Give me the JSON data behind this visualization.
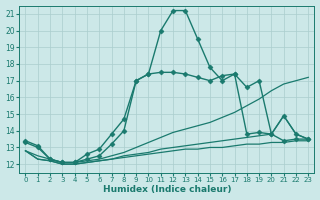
{
  "title": "",
  "xlabel": "Humidex (Indice chaleur)",
  "ylabel": "",
  "bg_color": "#cce8e8",
  "grid_color": "#aacece",
  "line_color": "#1a7a6e",
  "xlim": [
    -0.5,
    23.5
  ],
  "ylim": [
    11.5,
    21.5
  ],
  "xticks": [
    0,
    1,
    2,
    3,
    4,
    5,
    6,
    7,
    8,
    9,
    10,
    11,
    12,
    13,
    14,
    15,
    16,
    17,
    18,
    19,
    20,
    21,
    22,
    23
  ],
  "yticks": [
    12,
    13,
    14,
    15,
    16,
    17,
    18,
    19,
    20,
    21
  ],
  "series": [
    {
      "x": [
        0,
        1,
        2,
        3,
        4,
        5,
        6,
        7,
        8,
        9,
        10,
        11,
        12,
        13,
        14,
        15,
        16,
        17,
        18,
        19,
        20,
        21,
        22,
        23
      ],
      "y": [
        13.4,
        13.1,
        12.3,
        12.1,
        12.1,
        12.6,
        12.9,
        13.8,
        14.7,
        17.0,
        17.4,
        20.0,
        21.2,
        21.2,
        19.5,
        17.8,
        17.0,
        17.4,
        16.6,
        17.0,
        13.8,
        14.9,
        13.8,
        13.5
      ],
      "marker": "D",
      "markersize": 2.5,
      "linewidth": 1.0
    },
    {
      "x": [
        0,
        1,
        2,
        3,
        4,
        5,
        6,
        7,
        8,
        9,
        10,
        11,
        12,
        13,
        14,
        15,
        16,
        17,
        18,
        19,
        20,
        21,
        22,
        23
      ],
      "y": [
        13.3,
        13.0,
        12.3,
        12.1,
        12.1,
        12.3,
        12.5,
        13.2,
        14.0,
        17.0,
        17.4,
        17.5,
        17.5,
        17.4,
        17.2,
        17.0,
        17.3,
        17.4,
        13.8,
        13.9,
        13.8,
        13.4,
        13.5,
        13.5
      ],
      "marker": "D",
      "markersize": 2.5,
      "linewidth": 1.0
    },
    {
      "x": [
        0,
        1,
        2,
        3,
        4,
        5,
        6,
        7,
        8,
        9,
        10,
        11,
        12,
        13,
        14,
        15,
        16,
        17,
        18,
        19,
        20,
        21,
        22,
        23
      ],
      "y": [
        12.8,
        12.5,
        12.3,
        12.1,
        12.1,
        12.2,
        12.3,
        12.5,
        12.7,
        13.0,
        13.3,
        13.6,
        13.9,
        14.1,
        14.3,
        14.5,
        14.8,
        15.1,
        15.5,
        15.9,
        16.4,
        16.8,
        17.0,
        17.2
      ],
      "marker": null,
      "markersize": 0,
      "linewidth": 0.9
    },
    {
      "x": [
        0,
        1,
        2,
        3,
        4,
        5,
        6,
        7,
        8,
        9,
        10,
        11,
        12,
        13,
        14,
        15,
        16,
        17,
        18,
        19,
        20,
        21,
        22,
        23
      ],
      "y": [
        12.8,
        12.3,
        12.2,
        12.0,
        12.0,
        12.1,
        12.2,
        12.3,
        12.5,
        12.6,
        12.7,
        12.9,
        13.0,
        13.1,
        13.2,
        13.3,
        13.4,
        13.5,
        13.6,
        13.7,
        13.8,
        14.9,
        13.8,
        13.5
      ],
      "marker": null,
      "markersize": 0,
      "linewidth": 0.9
    },
    {
      "x": [
        0,
        1,
        2,
        3,
        4,
        5,
        6,
        7,
        8,
        9,
        10,
        11,
        12,
        13,
        14,
        15,
        16,
        17,
        18,
        19,
        20,
        21,
        22,
        23
      ],
      "y": [
        12.8,
        12.3,
        12.2,
        12.0,
        12.0,
        12.1,
        12.2,
        12.3,
        12.4,
        12.5,
        12.6,
        12.7,
        12.8,
        12.9,
        12.9,
        13.0,
        13.0,
        13.1,
        13.2,
        13.2,
        13.3,
        13.3,
        13.4,
        13.4
      ],
      "marker": null,
      "markersize": 0,
      "linewidth": 0.9
    }
  ]
}
